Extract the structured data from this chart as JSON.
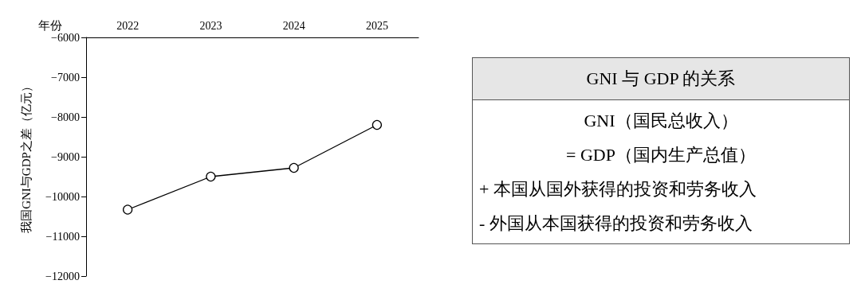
{
  "chart_data": [
    {
      "type": "line",
      "xlabel": "年份",
      "ylabel": "我国GNI与GDP之差（亿元）",
      "categories": [
        "2022",
        "2023",
        "2024",
        "2025"
      ],
      "series": [
        {
          "color": "#000000",
          "values": [
            -10330,
            -9500,
            -9280,
            -8200
          ]
        }
      ],
      "ylim": [
        -12000,
        -6000
      ],
      "yticks": [
        -12000,
        -11000,
        -10000,
        -9000,
        -8000,
        -7000,
        -6000
      ],
      "grid": false,
      "marker": "circle",
      "line_style": "solid"
    },
    {
      "type": "other",
      "title": "GNI 与 GDP 的关系",
      "annotations": [
        "GNI（国民总收入）",
        "= GDP（国内生产总值）",
        "+ 本国从国外获得的投资和劳务收入",
        "- 外国从本国获得的投资和劳务收入"
      ]
    }
  ]
}
